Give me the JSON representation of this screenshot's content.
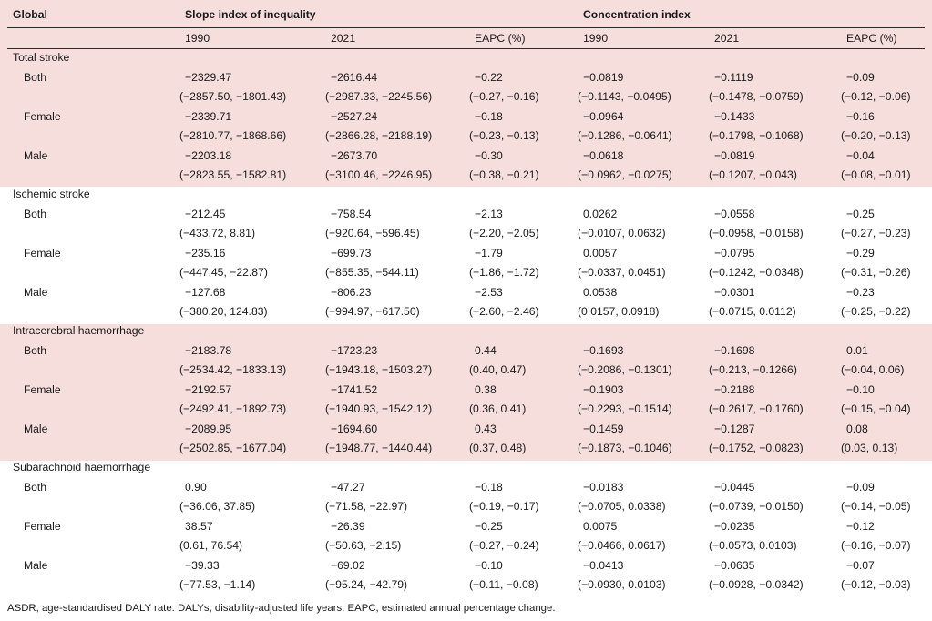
{
  "header": {
    "global": "Global",
    "sii": "Slope index of inequality",
    "ci": "Concentration index",
    "sub": [
      "1990",
      "2021",
      "EAPC (%)",
      "1990",
      "2021",
      "EAPC (%)"
    ]
  },
  "sections": [
    {
      "title": "Total stroke",
      "rows": [
        {
          "label": "Both",
          "v": [
            "−2329.47",
            "−2616.44",
            "−0.22",
            "−0.0819",
            "−0.1119",
            "−0.09"
          ],
          "ci": [
            "(−2857.50, −1801.43)",
            "(−2987.33, −2245.56)",
            "(−0.27, −0.16)",
            "(−0.1143, −0.0495)",
            "(−0.1478, −0.0759)",
            "(−0.12, −0.06)"
          ]
        },
        {
          "label": "Female",
          "v": [
            "−2339.71",
            "−2527.24",
            "−0.18",
            "−0.0964",
            "−0.1433",
            "−0.16"
          ],
          "ci": [
            "(−2810.77, −1868.66)",
            "(−2866.28, −2188.19)",
            "(−0.23, −0.13)",
            "(−0.1286, −0.0641)",
            "(−0.1798, −0.1068)",
            "(−0.20, −0.13)"
          ]
        },
        {
          "label": "Male",
          "v": [
            "−2203.18",
            "−2673.70",
            "−0.30",
            "−0.0618",
            "−0.0819",
            "−0.04"
          ],
          "ci": [
            "(−2823.55, −1582.81)",
            "(−3100.46, −2246.95)",
            "(−0.38, −0.21)",
            "(−0.0962, −0.0275)",
            "(−0.1207, −0.043)",
            "(−0.08, −0.01)"
          ]
        }
      ]
    },
    {
      "title": "Ischemic stroke",
      "rows": [
        {
          "label": "Both",
          "v": [
            "−212.45",
            "−758.54",
            "−2.13",
            "0.0262",
            "−0.0558",
            "−0.25"
          ],
          "ci": [
            "(−433.72, 8.81)",
            "(−920.64, −596.45)",
            "(−2.20, −2.05)",
            "(−0.0107, 0.0632)",
            "(−0.0958, −0.0158)",
            "(−0.27, −0.23)"
          ]
        },
        {
          "label": "Female",
          "v": [
            "−235.16",
            "−699.73",
            "−1.79",
            "0.0057",
            "−0.0795",
            "−0.29"
          ],
          "ci": [
            "(−447.45, −22.87)",
            "(−855.35, −544.11)",
            "(−1.86, −1.72)",
            "(−0.0337, 0.0451)",
            "(−0.1242, −0.0348)",
            "(−0.31, −0.26)"
          ]
        },
        {
          "label": "Male",
          "v": [
            "−127.68",
            "−806.23",
            "−2.53",
            "0.0538",
            "−0.0301",
            "−0.23"
          ],
          "ci": [
            "(−380.20, 124.83)",
            "(−994.97, −617.50)",
            "(−2.60, −2.46)",
            "(0.0157, 0.0918)",
            "(−0.0715, 0.0112)",
            "(−0.25, −0.22)"
          ]
        }
      ]
    },
    {
      "title": "Intracerebral haemorrhage",
      "rows": [
        {
          "label": "Both",
          "v": [
            "−2183.78",
            "−1723.23",
            "0.44",
            "−0.1693",
            "−0.1698",
            "0.01"
          ],
          "ci": [
            "(−2534.42, −1833.13)",
            "(−1943.18, −1503.27)",
            "(0.40, 0.47)",
            "(−0.2086, −0.1301)",
            "(−0.213, −0.1266)",
            "(−0.04, 0.06)"
          ]
        },
        {
          "label": "Female",
          "v": [
            "−2192.57",
            "−1741.52",
            "0.38",
            "−0.1903",
            "−0.2188",
            "−0.10"
          ],
          "ci": [
            "(−2492.41, −1892.73)",
            "(−1940.93, −1542.12)",
            "(0.36, 0.41)",
            "(−0.2293, −0.1514)",
            "(−0.2617, −0.1760)",
            "(−0.15, −0.04)"
          ]
        },
        {
          "label": "Male",
          "v": [
            "−2089.95",
            "−1694.60",
            "0.43",
            "−0.1459",
            "−0.1287",
            "0.08"
          ],
          "ci": [
            "(−2502.85, −1677.04)",
            "(−1948.77, −1440.44)",
            "(0.37, 0.48)",
            "(−0.1873, −0.1046)",
            "(−0.1752, −0.0823)",
            "(0.03, 0.13)"
          ]
        }
      ]
    },
    {
      "title": "Subarachnoid haemorrhage",
      "rows": [
        {
          "label": "Both",
          "v": [
            "0.90",
            "−47.27",
            "−0.18",
            "−0.0183",
            "−0.0445",
            "−0.09"
          ],
          "ci": [
            "(−36.06, 37.85)",
            "(−71.58, −22.97)",
            "(−0.19, −0.17)",
            "(−0.0705, 0.0338)",
            "(−0.0739, −0.0150)",
            "(−0.14, −0.05)"
          ]
        },
        {
          "label": "Female",
          "v": [
            "38.57",
            "−26.39",
            "−0.25",
            "0.0075",
            "−0.0235",
            "−0.12"
          ],
          "ci": [
            "(0.61, 76.54)",
            "(−50.63, −2.15)",
            "(−0.27, −0.24)",
            "(−0.0466, 0.0617)",
            "(−0.0573, 0.0103)",
            "(−0.16, −0.07)"
          ]
        },
        {
          "label": "Male",
          "v": [
            "−39.33",
            "−69.02",
            "−0.10",
            "−0.0413",
            "−0.0635",
            "−0.07"
          ],
          "ci": [
            "(−77.53, −1.14)",
            "(−95.24, −42.79)",
            "(−0.11, −0.08)",
            "(−0.0930, 0.0103)",
            "(−0.0928, −0.0342)",
            "(−0.12, −0.03)"
          ]
        }
      ]
    }
  ],
  "footnote": "ASDR, age-standardised DALY rate. DALYs, disability-adjusted life years. EAPC, estimated annual percentage change.",
  "colors": {
    "pink_band": "#f6dedd",
    "white_band": "#ffffff",
    "rule": "#2a2a2a"
  }
}
